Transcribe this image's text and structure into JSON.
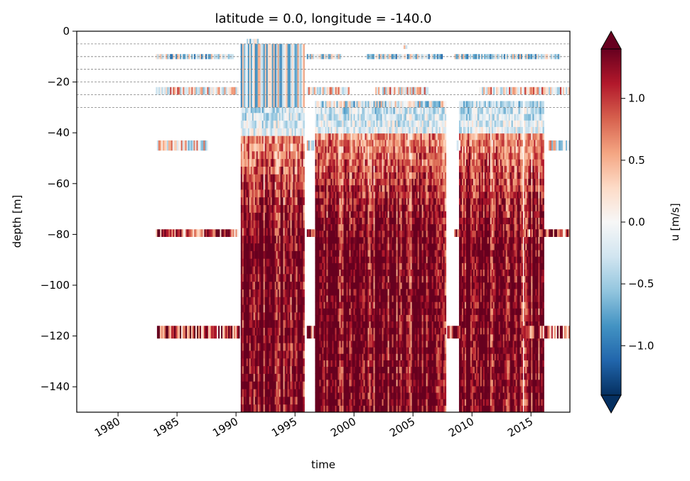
{
  "chart_data": {
    "type": "heatmap",
    "title": "latitude = 0.0, longitude = -140.0",
    "xlabel": "time",
    "ylabel": "depth [m]",
    "xlim": [
      1976.5,
      2018.3
    ],
    "ylim": [
      -150,
      0
    ],
    "x_ticks": [
      1980,
      1985,
      1990,
      1995,
      2000,
      2005,
      2010,
      2015
    ],
    "x_tick_labels": [
      "1980",
      "1985",
      "1990",
      "1995",
      "2000",
      "2005",
      "2010",
      "2015"
    ],
    "y_ticks": [
      0,
      -20,
      -40,
      -60,
      -80,
      -100,
      -120,
      -140
    ],
    "y_tick_labels": [
      "0",
      "−20",
      "−40",
      "−60",
      "−80",
      "−100",
      "−120",
      "−140"
    ],
    "colorbar": {
      "label": "u [m/s]",
      "range": [
        -1.4,
        1.4
      ],
      "extend": "both",
      "colormap": "RdBu_r",
      "ticks": [
        1.0,
        0.5,
        0.0,
        -0.5,
        -1.0
      ],
      "tick_labels": [
        "1.0",
        "0.5",
        "0.0",
        "−0.5",
        "−1.0"
      ]
    },
    "reference_depths": [
      -5,
      -10,
      -15,
      -20,
      -25,
      -30
    ],
    "depth_bands": [
      {
        "top": -3,
        "bottom": -5,
        "periods": [
          [
            1990.9,
            1991.9
          ]
        ],
        "bias": -0.2
      },
      {
        "top": -5.5,
        "bottom": -7,
        "periods": [
          [
            2004.2,
            2004.5
          ]
        ],
        "bias": -0.3
      },
      {
        "top": -9,
        "bottom": -11,
        "periods": [
          [
            1983.2,
            1989.8
          ],
          [
            1996.0,
            1999.0
          ],
          [
            2001.0,
            2007.5
          ],
          [
            2008.5,
            2017.5
          ]
        ],
        "bias": -0.3
      },
      {
        "top": -22,
        "bottom": -25,
        "periods": [
          [
            1983.2,
            1990.2
          ],
          [
            1996.0,
            1999.6
          ],
          [
            2001.8,
            2006.3
          ],
          [
            2010.6,
            2018.3
          ]
        ],
        "bias": 0.2
      },
      {
        "top": -43,
        "bottom": -47,
        "periods": [
          [
            1983.3,
            1987.6
          ],
          [
            1996.0,
            1996.6
          ],
          [
            2008.7,
            2009.0
          ],
          [
            2016.5,
            2018.3
          ]
        ],
        "bias": 0.1
      },
      {
        "top": -78,
        "bottom": -81,
        "periods": [
          [
            1983.2,
            1990.2
          ],
          [
            1996.0,
            1996.7
          ],
          [
            2008.5,
            2009.0
          ],
          [
            2014.2,
            2018.3
          ]
        ],
        "bias": 0.9
      },
      {
        "top": -116,
        "bottom": -121,
        "periods": [
          [
            1983.3,
            1990.3
          ],
          [
            1996.0,
            1996.7
          ],
          [
            2007.9,
            2009.0
          ],
          [
            2014.3,
            2018.3
          ]
        ],
        "bias": 0.9
      }
    ],
    "full_profile_periods": [
      {
        "start": 1990.4,
        "end": 1995.8,
        "top": -5,
        "bottom": -150
      },
      {
        "start": 1996.7,
        "end": 2007.8,
        "top": -27.5,
        "bottom": -150
      },
      {
        "start": 2008.9,
        "end": 2014.3,
        "top": -27.5,
        "bottom": -150
      },
      {
        "start": 2014.4,
        "end": 2016.1,
        "top": -27.5,
        "bottom": -150
      }
    ],
    "upper_column_periods": [
      {
        "start": 1990.4,
        "end": 1995.8,
        "top": -5,
        "bottom": -30
      },
      {
        "start": 1996.7,
        "end": 2007.8,
        "top": -27.5,
        "bottom": -30
      }
    ]
  }
}
